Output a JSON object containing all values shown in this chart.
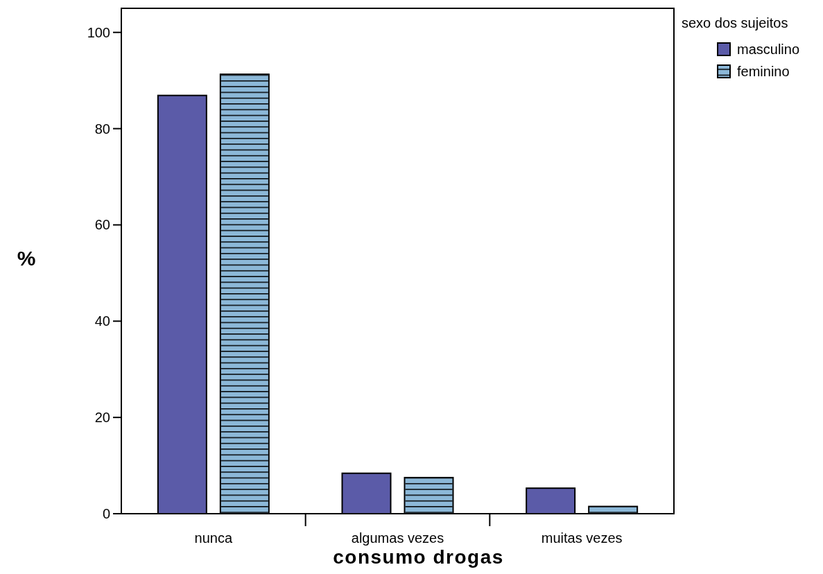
{
  "chart_data": {
    "type": "bar",
    "xlabel": "consumo drogas",
    "ylabel": "%",
    "legend_title": "sexo dos sujeitos",
    "categories": [
      "nunca",
      "algumas vezes",
      "muitas vezes"
    ],
    "series": [
      {
        "name": "masculino",
        "color": "#5b5ba8",
        "values": [
          86.9,
          8.4,
          5.3
        ]
      },
      {
        "name": "feminino",
        "color": "#8cb8d8",
        "values": [
          91.3,
          7.5,
          1.5
        ]
      }
    ],
    "ylim": [
      0,
      105
    ],
    "yticks": [
      0,
      20,
      40,
      60,
      80,
      100
    ],
    "legend": "top right",
    "grid": false
  }
}
